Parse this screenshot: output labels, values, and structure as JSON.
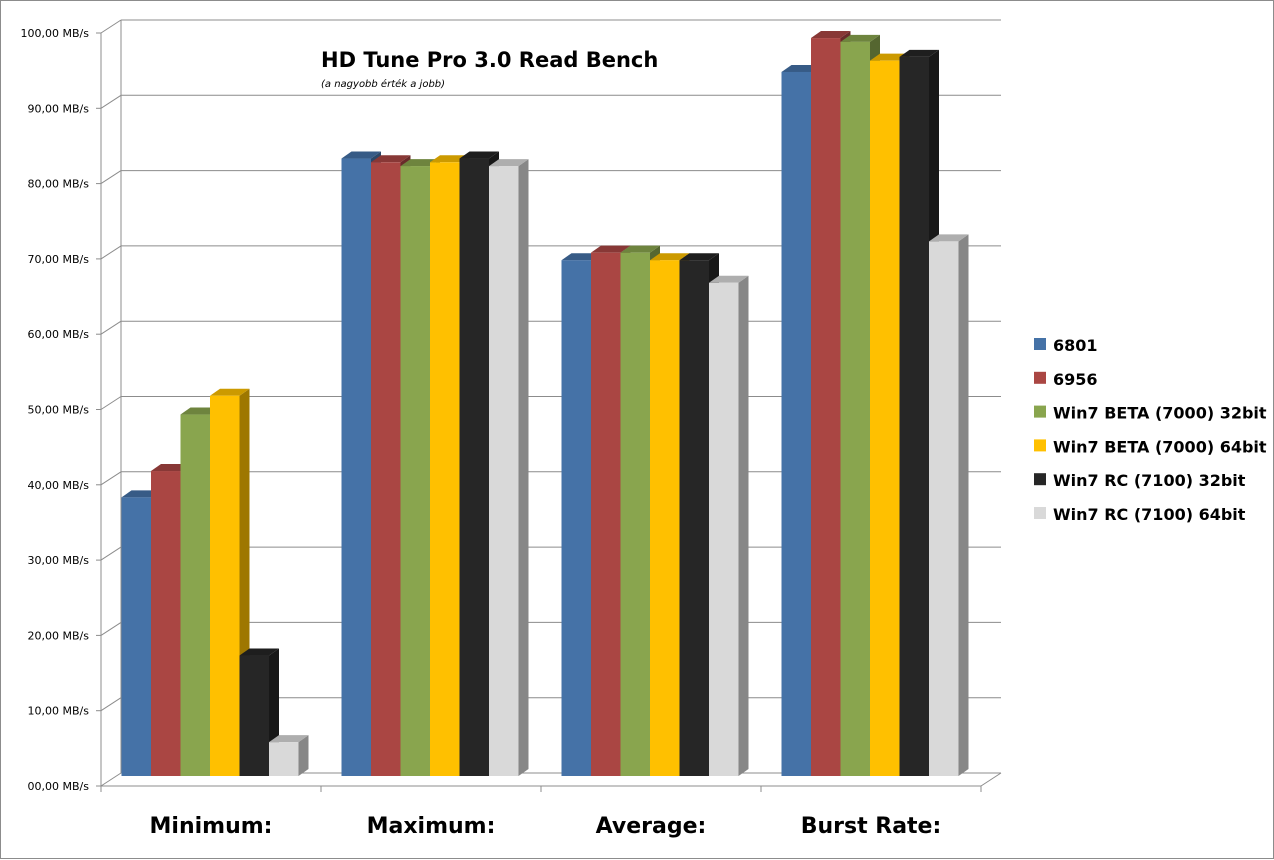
{
  "chart_data": {
    "type": "bar",
    "title": "HD Tune Pro 3.0 Read Bench",
    "subtitle": "(a nagyobb érték a jobb)",
    "categories": [
      "Minimum:",
      "Maximum:",
      "Average:",
      "Burst Rate:"
    ],
    "y_ticks": [
      "00,00 MB/s",
      "10,00 MB/s",
      "20,00 MB/s",
      "30,00 MB/s",
      "40,00 MB/s",
      "50,00 MB/s",
      "60,00 MB/s",
      "70,00 MB/s",
      "80,00 MB/s",
      "90,00 MB/s",
      "100,00 MB/s"
    ],
    "ylim": [
      0,
      100
    ],
    "grid": true,
    "legend_position": "right",
    "series": [
      {
        "name": "6801",
        "color": "#4572A7",
        "values": [
          37.0,
          82.0,
          68.5,
          93.5
        ]
      },
      {
        "name": "6956",
        "color": "#AA4643",
        "values": [
          40.5,
          81.5,
          69.5,
          98.0
        ]
      },
      {
        "name": "Win7 BETA (7000) 32bit",
        "color": "#89A54E",
        "values": [
          48.0,
          81.0,
          69.5,
          97.5
        ]
      },
      {
        "name": "Win7 BETA (7000) 64bit",
        "color": "#FFC000",
        "values": [
          50.5,
          81.5,
          68.5,
          95.0
        ]
      },
      {
        "name": "Win7 RC (7100) 32bit",
        "color": "#262626",
        "values": [
          16.0,
          82.0,
          68.5,
          95.5
        ]
      },
      {
        "name": "Win7 RC (7100) 64bit",
        "color": "#D9D9D9",
        "values": [
          4.5,
          81.0,
          65.5,
          71.0
        ]
      }
    ]
  }
}
